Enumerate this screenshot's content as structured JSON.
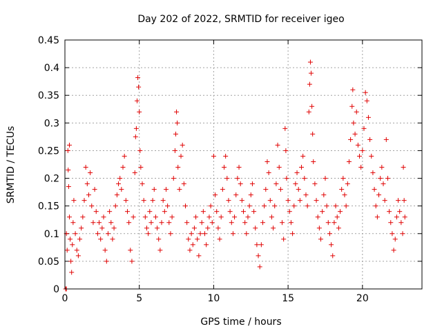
{
  "chart_data": {
    "type": "scatter",
    "title": "Day 202 of 2022, SRMTID for receiver igeo",
    "xlabel": "GPS time / hours",
    "ylabel": "SRMTID / TECUs",
    "xlim": [
      0,
      24
    ],
    "ylim": [
      0,
      0.45
    ],
    "xticks": [
      0,
      5,
      10,
      15,
      20
    ],
    "xtick_labels": [
      "0",
      "5",
      "10",
      "15",
      "20"
    ],
    "yticks": [
      0,
      0.05,
      0.1,
      0.15,
      0.2,
      0.25,
      0.3,
      0.35,
      0.4,
      0.45
    ],
    "ytick_labels": [
      "0",
      "0.05",
      "0.1",
      "0.15",
      "0.2",
      "0.25",
      "0.3",
      "0.35",
      "0.4",
      "0.45"
    ],
    "grid": true,
    "marker": "+",
    "color": "#e00000",
    "series": [
      {
        "name": "SRMTID",
        "points": [
          [
            0.05,
            0.0
          ],
          [
            0.1,
            0.0
          ],
          [
            0.1,
            0.1
          ],
          [
            0.15,
            0.07
          ],
          [
            0.2,
            0.25
          ],
          [
            0.22,
            0.215
          ],
          [
            0.25,
            0.185
          ],
          [
            0.3,
            0.26
          ],
          [
            0.3,
            0.13
          ],
          [
            0.35,
            0.09
          ],
          [
            0.4,
            0.05
          ],
          [
            0.45,
            0.03
          ],
          [
            0.5,
            0.08
          ],
          [
            0.55,
            0.12
          ],
          [
            0.6,
            0.16
          ],
          [
            0.7,
            0.1
          ],
          [
            0.8,
            0.07
          ],
          [
            0.9,
            0.06
          ],
          [
            1.0,
            0.09
          ],
          [
            1.1,
            0.11
          ],
          [
            1.2,
            0.13
          ],
          [
            1.3,
            0.16
          ],
          [
            1.4,
            0.22
          ],
          [
            1.5,
            0.19
          ],
          [
            1.6,
            0.17
          ],
          [
            1.7,
            0.21
          ],
          [
            1.8,
            0.15
          ],
          [
            1.9,
            0.12
          ],
          [
            2.0,
            0.18
          ],
          [
            2.1,
            0.14
          ],
          [
            2.2,
            0.1
          ],
          [
            2.3,
            0.12
          ],
          [
            2.4,
            0.09
          ],
          [
            2.5,
            0.11
          ],
          [
            2.6,
            0.13
          ],
          [
            2.7,
            0.07
          ],
          [
            2.8,
            0.05
          ],
          [
            2.9,
            0.1
          ],
          [
            3.0,
            0.14
          ],
          [
            3.1,
            0.12
          ],
          [
            3.2,
            0.09
          ],
          [
            3.3,
            0.11
          ],
          [
            3.4,
            0.15
          ],
          [
            3.5,
            0.17
          ],
          [
            3.6,
            0.19
          ],
          [
            3.7,
            0.2
          ],
          [
            3.8,
            0.18
          ],
          [
            3.9,
            0.22
          ],
          [
            4.0,
            0.24
          ],
          [
            4.1,
            0.16
          ],
          [
            4.2,
            0.14
          ],
          [
            4.3,
            0.12
          ],
          [
            4.4,
            0.07
          ],
          [
            4.5,
            0.05
          ],
          [
            4.6,
            0.13
          ],
          [
            4.7,
            0.21
          ],
          [
            4.75,
            0.275
          ],
          [
            4.8,
            0.29
          ],
          [
            4.85,
            0.34
          ],
          [
            4.9,
            0.382
          ],
          [
            4.95,
            0.365
          ],
          [
            5.0,
            0.32
          ],
          [
            5.05,
            0.25
          ],
          [
            5.1,
            0.22
          ],
          [
            5.2,
            0.19
          ],
          [
            5.3,
            0.16
          ],
          [
            5.4,
            0.13
          ],
          [
            5.5,
            0.11
          ],
          [
            5.6,
            0.1
          ],
          [
            5.7,
            0.14
          ],
          [
            5.8,
            0.12
          ],
          [
            5.9,
            0.16
          ],
          [
            6.0,
            0.18
          ],
          [
            6.1,
            0.13
          ],
          [
            6.2,
            0.11
          ],
          [
            6.3,
            0.09
          ],
          [
            6.4,
            0.07
          ],
          [
            6.5,
            0.12
          ],
          [
            6.6,
            0.16
          ],
          [
            6.7,
            0.14
          ],
          [
            6.8,
            0.18
          ],
          [
            6.9,
            0.15
          ],
          [
            7.0,
            0.12
          ],
          [
            7.1,
            0.1
          ],
          [
            7.2,
            0.13
          ],
          [
            7.3,
            0.2
          ],
          [
            7.4,
            0.25
          ],
          [
            7.45,
            0.28
          ],
          [
            7.5,
            0.32
          ],
          [
            7.55,
            0.3
          ],
          [
            7.6,
            0.22
          ],
          [
            7.7,
            0.18
          ],
          [
            7.8,
            0.24
          ],
          [
            7.9,
            0.26
          ],
          [
            8.0,
            0.19
          ],
          [
            8.1,
            0.15
          ],
          [
            8.2,
            0.12
          ],
          [
            8.3,
            0.09
          ],
          [
            8.4,
            0.07
          ],
          [
            8.5,
            0.1
          ],
          [
            8.6,
            0.08
          ],
          [
            8.7,
            0.11
          ],
          [
            8.8,
            0.13
          ],
          [
            8.9,
            0.09
          ],
          [
            9.0,
            0.06
          ],
          [
            9.1,
            0.1
          ],
          [
            9.2,
            0.12
          ],
          [
            9.3,
            0.14
          ],
          [
            9.4,
            0.1
          ],
          [
            9.5,
            0.08
          ],
          [
            9.6,
            0.11
          ],
          [
            9.7,
            0.13
          ],
          [
            9.8,
            0.15
          ],
          [
            9.9,
            0.12
          ],
          [
            10.0,
            0.24
          ],
          [
            10.1,
            0.17
          ],
          [
            10.2,
            0.14
          ],
          [
            10.3,
            0.11
          ],
          [
            10.4,
            0.09
          ],
          [
            10.5,
            0.13
          ],
          [
            10.6,
            0.18
          ],
          [
            10.7,
            0.22
          ],
          [
            10.8,
            0.24
          ],
          [
            10.9,
            0.2
          ],
          [
            11.0,
            0.16
          ],
          [
            11.1,
            0.14
          ],
          [
            11.2,
            0.12
          ],
          [
            11.3,
            0.1
          ],
          [
            11.4,
            0.13
          ],
          [
            11.5,
            0.17
          ],
          [
            11.6,
            0.2
          ],
          [
            11.7,
            0.22
          ],
          [
            11.8,
            0.19
          ],
          [
            11.9,
            0.16
          ],
          [
            12.0,
            0.14
          ],
          [
            12.1,
            0.12
          ],
          [
            12.2,
            0.1
          ],
          [
            12.3,
            0.13
          ],
          [
            12.4,
            0.15
          ],
          [
            12.5,
            0.17
          ],
          [
            12.6,
            0.19
          ],
          [
            12.7,
            0.14
          ],
          [
            12.8,
            0.11
          ],
          [
            12.9,
            0.08
          ],
          [
            13.0,
            0.06
          ],
          [
            13.1,
            0.04
          ],
          [
            13.2,
            0.08
          ],
          [
            13.3,
            0.12
          ],
          [
            13.4,
            0.15
          ],
          [
            13.5,
            0.18
          ],
          [
            13.6,
            0.23
          ],
          [
            13.7,
            0.21
          ],
          [
            13.8,
            0.16
          ],
          [
            13.9,
            0.13
          ],
          [
            14.0,
            0.11
          ],
          [
            14.1,
            0.15
          ],
          [
            14.2,
            0.19
          ],
          [
            14.3,
            0.26
          ],
          [
            14.4,
            0.22
          ],
          [
            14.5,
            0.18
          ],
          [
            14.6,
            0.12
          ],
          [
            14.7,
            0.09
          ],
          [
            14.8,
            0.29
          ],
          [
            14.85,
            0.25
          ],
          [
            14.9,
            0.2
          ],
          [
            15.0,
            0.16
          ],
          [
            15.1,
            0.14
          ],
          [
            15.2,
            0.12
          ],
          [
            15.3,
            0.1
          ],
          [
            15.4,
            0.15
          ],
          [
            15.5,
            0.19
          ],
          [
            15.6,
            0.21
          ],
          [
            15.7,
            0.18
          ],
          [
            15.8,
            0.16
          ],
          [
            15.9,
            0.22
          ],
          [
            16.0,
            0.24
          ],
          [
            16.1,
            0.2
          ],
          [
            16.2,
            0.17
          ],
          [
            16.3,
            0.15
          ],
          [
            16.4,
            0.32
          ],
          [
            16.45,
            0.37
          ],
          [
            16.5,
            0.41
          ],
          [
            16.55,
            0.39
          ],
          [
            16.6,
            0.33
          ],
          [
            16.65,
            0.28
          ],
          [
            16.7,
            0.23
          ],
          [
            16.8,
            0.19
          ],
          [
            16.9,
            0.16
          ],
          [
            17.0,
            0.13
          ],
          [
            17.1,
            0.11
          ],
          [
            17.2,
            0.09
          ],
          [
            17.3,
            0.14
          ],
          [
            17.4,
            0.17
          ],
          [
            17.5,
            0.2
          ],
          [
            17.6,
            0.15
          ],
          [
            17.7,
            0.12
          ],
          [
            17.8,
            0.1
          ],
          [
            17.9,
            0.08
          ],
          [
            18.0,
            0.06
          ],
          [
            18.1,
            0.12
          ],
          [
            18.2,
            0.15
          ],
          [
            18.3,
            0.13
          ],
          [
            18.4,
            0.11
          ],
          [
            18.5,
            0.14
          ],
          [
            18.6,
            0.18
          ],
          [
            18.7,
            0.2
          ],
          [
            18.8,
            0.17
          ],
          [
            18.9,
            0.15
          ],
          [
            19.0,
            0.19
          ],
          [
            19.1,
            0.23
          ],
          [
            19.2,
            0.27
          ],
          [
            19.3,
            0.33
          ],
          [
            19.35,
            0.36
          ],
          [
            19.4,
            0.3
          ],
          [
            19.5,
            0.28
          ],
          [
            19.6,
            0.32
          ],
          [
            19.7,
            0.26
          ],
          [
            19.8,
            0.24
          ],
          [
            19.9,
            0.22
          ],
          [
            20.0,
            0.25
          ],
          [
            20.1,
            0.29
          ],
          [
            20.2,
            0.355
          ],
          [
            20.3,
            0.34
          ],
          [
            20.4,
            0.31
          ],
          [
            20.5,
            0.27
          ],
          [
            20.6,
            0.24
          ],
          [
            20.7,
            0.21
          ],
          [
            20.8,
            0.18
          ],
          [
            20.9,
            0.15
          ],
          [
            21.0,
            0.13
          ],
          [
            21.1,
            0.17
          ],
          [
            21.2,
            0.2
          ],
          [
            21.3,
            0.22
          ],
          [
            21.4,
            0.19
          ],
          [
            21.5,
            0.16
          ],
          [
            21.6,
            0.27
          ],
          [
            21.7,
            0.2
          ],
          [
            21.8,
            0.14
          ],
          [
            21.9,
            0.12
          ],
          [
            22.0,
            0.1
          ],
          [
            22.1,
            0.07
          ],
          [
            22.2,
            0.09
          ],
          [
            22.3,
            0.13
          ],
          [
            22.4,
            0.16
          ],
          [
            22.5,
            0.14
          ],
          [
            22.6,
            0.12
          ],
          [
            22.7,
            0.1
          ],
          [
            22.75,
            0.22
          ],
          [
            22.8,
            0.16
          ],
          [
            22.85,
            0.13
          ]
        ]
      }
    ]
  }
}
